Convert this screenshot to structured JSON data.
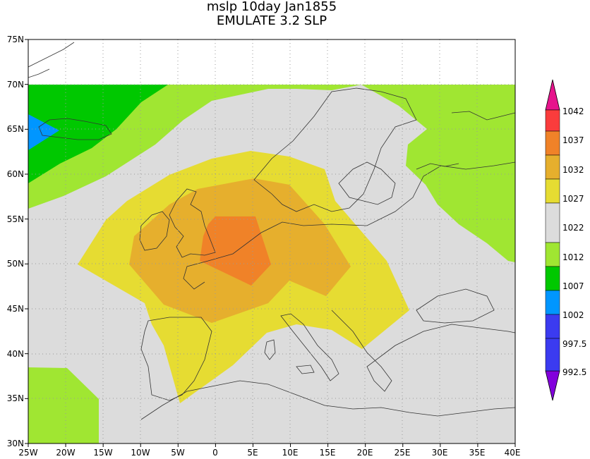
{
  "title": {
    "line1": "mslp 10day Jan1855",
    "line2": "EMULATE 3.2 SLP"
  },
  "chart_data": {
    "type": "heatmap",
    "variable": "mean sea level pressure (contour-filled map)",
    "xaxis": {
      "ticks": [
        "25W",
        "20W",
        "15W",
        "10W",
        "5W",
        "0",
        "5E",
        "10E",
        "15E",
        "20E",
        "25E",
        "30E",
        "35E",
        "40E"
      ],
      "lim": [
        -25,
        40
      ]
    },
    "yaxis": {
      "ticks": [
        "30N",
        "35N",
        "40N",
        "45N",
        "50N",
        "55N",
        "60N",
        "65N",
        "70N",
        "75N"
      ],
      "lim": [
        30,
        75
      ]
    },
    "data_extent": {
      "lon": [
        -25,
        40
      ],
      "lat": [
        30,
        70
      ]
    },
    "levels": [
      {
        "label": "992.5",
        "color": "#3b3bf0"
      },
      {
        "label": "997.5",
        "color": "#0096ff"
      },
      {
        "label": "1002",
        "color": "#00c800"
      },
      {
        "label": "1007",
        "color": "#a0e632"
      },
      {
        "label": "1012",
        "color": "#dcdcdc"
      },
      {
        "label": "1022",
        "color": "#e6dc32"
      },
      {
        "label": "1027",
        "color": "#e6af2d"
      },
      {
        "label": "1032",
        "color": "#f08228"
      },
      {
        "label": "1037",
        "color": "#fa3c3c"
      },
      {
        "label": "1042",
        "color": "#f00082"
      }
    ],
    "colorbar_bottom_color": "#8200dc",
    "colorbar_top_color": "#e6148c",
    "features": [
      "high pressure centre (>1032) over southern England / northern France near 0-5E, 48-55N",
      "1027-1032 band over British Isles and North Sea",
      "1022-1027 envelope from 13W to 25E, 35-62N",
      "1007-1012 zones over Iceland area, Scandinavia/Russia east of 25E, and off NW Africa",
      "1002-1007 near 65N west of 10W",
      "997.5-1002 small patch at 25W 64N"
    ]
  }
}
